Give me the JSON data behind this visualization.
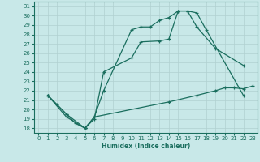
{
  "xlabel": "Humidex (Indice chaleur)",
  "bg_color": "#c8e8e8",
  "grid_color": "#b0d0d0",
  "line_color": "#1a6e5e",
  "xlim": [
    -0.5,
    23.5
  ],
  "ylim": [
    17.5,
    31.5
  ],
  "xticks": [
    0,
    1,
    2,
    3,
    4,
    5,
    6,
    7,
    8,
    9,
    10,
    11,
    12,
    13,
    14,
    15,
    16,
    17,
    18,
    19,
    20,
    21,
    22,
    23
  ],
  "yticks": [
    18,
    19,
    20,
    21,
    22,
    23,
    24,
    25,
    26,
    27,
    28,
    29,
    30,
    31
  ],
  "line1_x": [
    1,
    2,
    3,
    4,
    5,
    5,
    6,
    7,
    10,
    11,
    12,
    13,
    14,
    15,
    16,
    17,
    18,
    22
  ],
  "line1_y": [
    21.5,
    20.5,
    19.5,
    18.5,
    18.0,
    18.0,
    19.2,
    22.0,
    28.5,
    28.8,
    28.8,
    29.5,
    29.8,
    30.5,
    30.5,
    30.3,
    28.5,
    21.5
  ],
  "line2_x": [
    1,
    3,
    5,
    6,
    7,
    10,
    11,
    13,
    14,
    15,
    16,
    17,
    19,
    22
  ],
  "line2_y": [
    21.5,
    19.5,
    18.0,
    19.0,
    24.0,
    25.5,
    27.2,
    27.3,
    27.5,
    30.5,
    30.5,
    28.8,
    26.5,
    24.7
  ],
  "line3_x": [
    1,
    3,
    5,
    6,
    14,
    17,
    19,
    20,
    21,
    22,
    23
  ],
  "line3_y": [
    21.5,
    19.2,
    18.0,
    19.2,
    20.8,
    21.5,
    22.0,
    22.3,
    22.3,
    22.2,
    22.5
  ]
}
